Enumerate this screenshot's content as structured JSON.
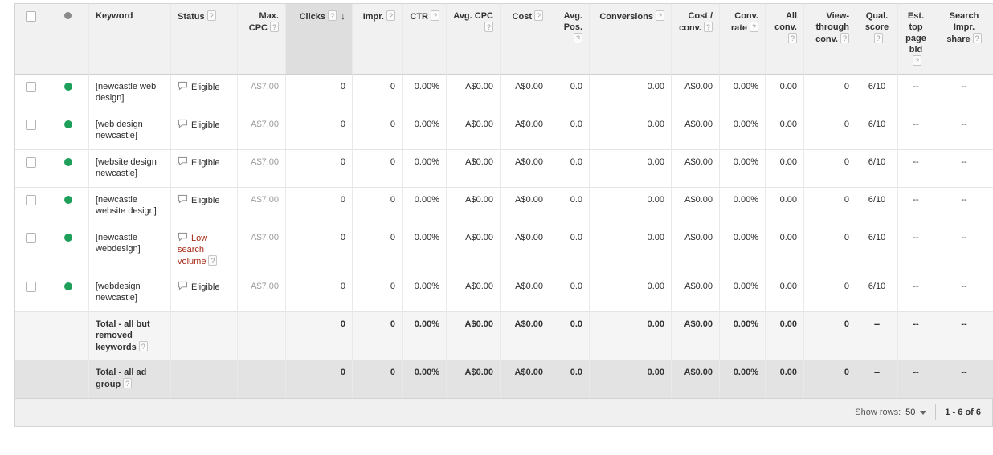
{
  "theme": {
    "status_green": "#1ea05a",
    "status_red": "#a52714",
    "header_bg": "#f1f1f1",
    "sorted_header_bg": "#dedede"
  },
  "table": {
    "columns": [
      {
        "id": "checkbox",
        "type": "checkbox"
      },
      {
        "id": "status_dot",
        "type": "dot"
      },
      {
        "id": "keyword",
        "label": "Keyword"
      },
      {
        "id": "status",
        "label": "Status",
        "help": true
      },
      {
        "id": "max_cpc",
        "label": "Max. CPC",
        "help": true
      },
      {
        "id": "clicks",
        "label": "Clicks",
        "help": true,
        "sorted": "desc"
      },
      {
        "id": "impr",
        "label": "Impr.",
        "help": true
      },
      {
        "id": "ctr",
        "label": "CTR",
        "help": true
      },
      {
        "id": "avg_cpc",
        "label": "Avg. CPC",
        "help": true
      },
      {
        "id": "cost",
        "label": "Cost",
        "help": true
      },
      {
        "id": "avg_pos",
        "label": "Avg. Pos.",
        "help": true
      },
      {
        "id": "conversions",
        "label": "Conversions",
        "help": true
      },
      {
        "id": "cost_conv",
        "label": "Cost / conv.",
        "help": true
      },
      {
        "id": "conv_rate",
        "label": "Conv. rate",
        "help": true
      },
      {
        "id": "all_conv",
        "label": "All conv.",
        "help": true
      },
      {
        "id": "view_through",
        "label": "View-through conv.",
        "help": true
      },
      {
        "id": "qual_score",
        "label": "Qual. score",
        "help": true
      },
      {
        "id": "est_top_bid",
        "label": "Est. top page bid",
        "help": true
      },
      {
        "id": "search_impr",
        "label": "Search Impr. share",
        "help": true
      }
    ],
    "rows": [
      {
        "type": "keyword",
        "keyword": "[newcastle web design]",
        "status": {
          "label": "Eligible",
          "kind": "eligible",
          "help": false
        },
        "values": {
          "max_cpc": "A$7.00",
          "clicks": "0",
          "impr": "0",
          "ctr": "0.00%",
          "avg_cpc": "A$0.00",
          "cost": "A$0.00",
          "avg_pos": "0.0",
          "conversions": "0.00",
          "cost_conv": "A$0.00",
          "conv_rate": "0.00%",
          "all_conv": "0.00",
          "view_through": "0",
          "qual_score": "6/10",
          "est_top_bid": "--",
          "search_impr": "--"
        }
      },
      {
        "type": "keyword",
        "keyword": "[web design newcastle]",
        "status": {
          "label": "Eligible",
          "kind": "eligible",
          "help": false
        },
        "values": {
          "max_cpc": "A$7.00",
          "clicks": "0",
          "impr": "0",
          "ctr": "0.00%",
          "avg_cpc": "A$0.00",
          "cost": "A$0.00",
          "avg_pos": "0.0",
          "conversions": "0.00",
          "cost_conv": "A$0.00",
          "conv_rate": "0.00%",
          "all_conv": "0.00",
          "view_through": "0",
          "qual_score": "6/10",
          "est_top_bid": "--",
          "search_impr": "--"
        }
      },
      {
        "type": "keyword",
        "keyword": "[website design newcastle]",
        "status": {
          "label": "Eligible",
          "kind": "eligible",
          "help": false
        },
        "values": {
          "max_cpc": "A$7.00",
          "clicks": "0",
          "impr": "0",
          "ctr": "0.00%",
          "avg_cpc": "A$0.00",
          "cost": "A$0.00",
          "avg_pos": "0.0",
          "conversions": "0.00",
          "cost_conv": "A$0.00",
          "conv_rate": "0.00%",
          "all_conv": "0.00",
          "view_through": "0",
          "qual_score": "6/10",
          "est_top_bid": "--",
          "search_impr": "--"
        }
      },
      {
        "type": "keyword",
        "keyword": "[newcastle website design]",
        "status": {
          "label": "Eligible",
          "kind": "eligible",
          "help": false
        },
        "values": {
          "max_cpc": "A$7.00",
          "clicks": "0",
          "impr": "0",
          "ctr": "0.00%",
          "avg_cpc": "A$0.00",
          "cost": "A$0.00",
          "avg_pos": "0.0",
          "conversions": "0.00",
          "cost_conv": "A$0.00",
          "conv_rate": "0.00%",
          "all_conv": "0.00",
          "view_through": "0",
          "qual_score": "6/10",
          "est_top_bid": "--",
          "search_impr": "--"
        }
      },
      {
        "type": "keyword",
        "keyword": "[newcastle webdesign]",
        "status": {
          "label": "Low search volume",
          "kind": "low",
          "help": true
        },
        "values": {
          "max_cpc": "A$7.00",
          "clicks": "0",
          "impr": "0",
          "ctr": "0.00%",
          "avg_cpc": "A$0.00",
          "cost": "A$0.00",
          "avg_pos": "0.0",
          "conversions": "0.00",
          "cost_conv": "A$0.00",
          "conv_rate": "0.00%",
          "all_conv": "0.00",
          "view_through": "0",
          "qual_score": "6/10",
          "est_top_bid": "--",
          "search_impr": "--"
        }
      },
      {
        "type": "keyword",
        "keyword": "[webdesign newcastle]",
        "status": {
          "label": "Eligible",
          "kind": "eligible",
          "help": false
        },
        "values": {
          "max_cpc": "A$7.00",
          "clicks": "0",
          "impr": "0",
          "ctr": "0.00%",
          "avg_cpc": "A$0.00",
          "cost": "A$0.00",
          "avg_pos": "0.0",
          "conversions": "0.00",
          "cost_conv": "A$0.00",
          "conv_rate": "0.00%",
          "all_conv": "0.00",
          "view_through": "0",
          "qual_score": "6/10",
          "est_top_bid": "--",
          "search_impr": "--"
        }
      },
      {
        "type": "total",
        "shade": "light",
        "label": "Total - all but removed keywords",
        "help": true,
        "values": {
          "max_cpc": "",
          "clicks": "0",
          "impr": "0",
          "ctr": "0.00%",
          "avg_cpc": "A$0.00",
          "cost": "A$0.00",
          "avg_pos": "0.0",
          "conversions": "0.00",
          "cost_conv": "A$0.00",
          "conv_rate": "0.00%",
          "all_conv": "0.00",
          "view_through": "0",
          "qual_score": "--",
          "est_top_bid": "--",
          "search_impr": "--"
        }
      },
      {
        "type": "total",
        "shade": "dark",
        "label": "Total - all ad group",
        "help": true,
        "values": {
          "max_cpc": "",
          "clicks": "0",
          "impr": "0",
          "ctr": "0.00%",
          "avg_cpc": "A$0.00",
          "cost": "A$0.00",
          "avg_pos": "0.0",
          "conversions": "0.00",
          "cost_conv": "A$0.00",
          "conv_rate": "0.00%",
          "all_conv": "0.00",
          "view_through": "0",
          "qual_score": "--",
          "est_top_bid": "--",
          "search_impr": "--"
        }
      }
    ]
  },
  "footer": {
    "show_rows_label": "Show rows:",
    "show_rows_value": "50",
    "range": "1 - 6 of 6"
  }
}
